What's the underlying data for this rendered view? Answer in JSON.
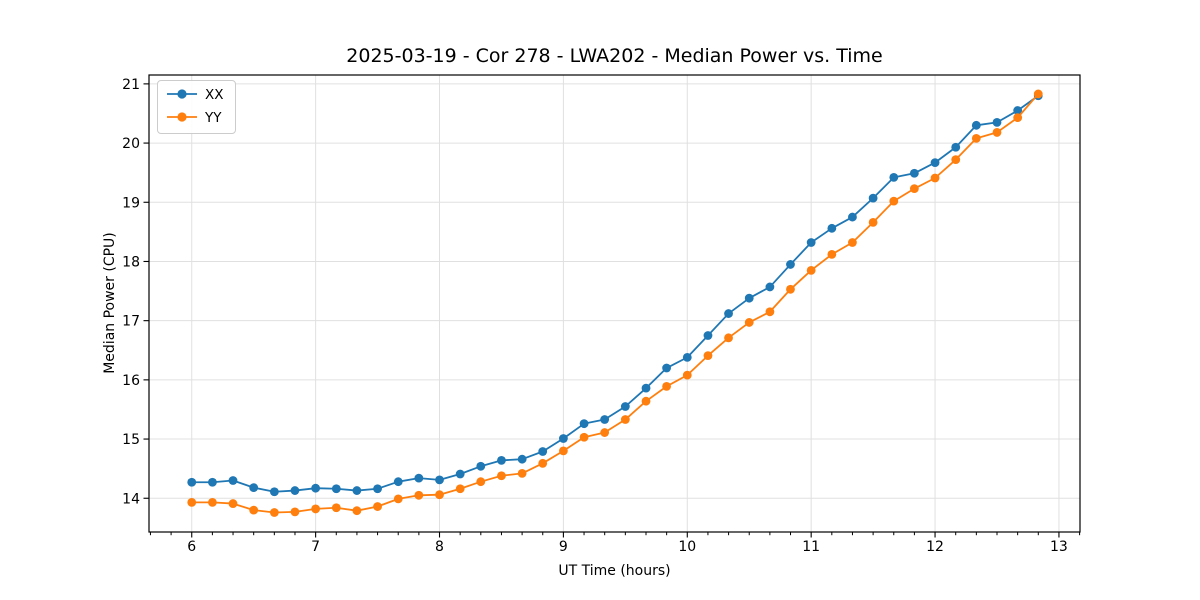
{
  "figure": {
    "title": "2025-03-19 - Cor 278 - LWA202 - Median Power vs. Time",
    "xlabel": "UT Time (hours)",
    "ylabel": "Median Power (CPU)"
  },
  "colors": {
    "series_xx": "#1f77b4",
    "series_yy": "#ff7f0e",
    "grid": "#e0e0e0",
    "spine": "#000000",
    "legend_border": "#cccccc"
  },
  "chart_data": {
    "type": "line",
    "title": "2025-03-19 - Cor 278 - LWA202 - Median Power vs. Time",
    "xlabel": "UT Time (hours)",
    "ylabel": "Median Power (CPU)",
    "xlim": [
      5.655,
      13.17
    ],
    "ylim": [
      13.43,
      21.15
    ],
    "xticks": [
      6,
      7,
      8,
      9,
      10,
      11,
      12,
      13
    ],
    "yticks": [
      14,
      15,
      16,
      17,
      18,
      19,
      20,
      21
    ],
    "x_minor_step": 0.166667,
    "grid": true,
    "legend_position": "upper-left",
    "marker": "circle",
    "x": [
      6.0,
      6.167,
      6.333,
      6.5,
      6.667,
      6.833,
      7.0,
      7.167,
      7.333,
      7.5,
      7.667,
      7.833,
      8.0,
      8.167,
      8.333,
      8.5,
      8.667,
      8.833,
      9.0,
      9.167,
      9.333,
      9.5,
      9.667,
      9.833,
      10.0,
      10.167,
      10.333,
      10.5,
      10.667,
      10.833,
      11.0,
      11.167,
      11.333,
      11.5,
      11.667,
      11.833,
      12.0,
      12.167,
      12.333,
      12.5,
      12.667,
      12.833
    ],
    "series": [
      {
        "name": "XX",
        "color": "#1f77b4",
        "values": [
          14.27,
          14.27,
          14.3,
          14.18,
          14.11,
          14.13,
          14.17,
          14.16,
          14.13,
          14.16,
          14.28,
          14.34,
          14.31,
          14.41,
          14.54,
          14.64,
          14.66,
          14.79,
          15.01,
          15.26,
          15.33,
          15.55,
          15.86,
          16.2,
          16.38,
          16.75,
          17.12,
          17.38,
          17.57,
          17.95,
          18.32,
          18.56,
          18.75,
          19.07,
          19.42,
          19.49,
          19.67,
          19.93,
          20.3,
          20.35,
          20.55,
          20.8
        ]
      },
      {
        "name": "YY",
        "color": "#ff7f0e",
        "values": [
          13.93,
          13.93,
          13.91,
          13.8,
          13.76,
          13.77,
          13.82,
          13.84,
          13.79,
          13.86,
          13.99,
          14.05,
          14.06,
          14.16,
          14.28,
          14.38,
          14.42,
          14.59,
          14.8,
          15.03,
          15.11,
          15.33,
          15.64,
          15.89,
          16.08,
          16.41,
          16.71,
          16.97,
          17.15,
          17.53,
          17.85,
          18.12,
          18.32,
          18.66,
          19.02,
          19.23,
          19.41,
          19.72,
          20.08,
          20.18,
          20.43,
          20.83
        ]
      }
    ]
  }
}
